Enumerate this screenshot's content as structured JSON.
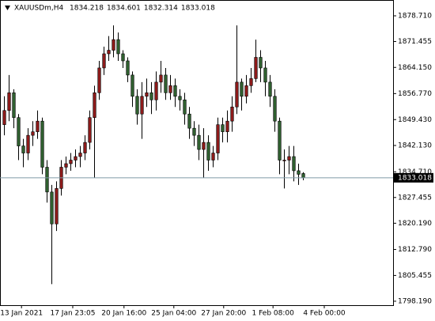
{
  "chart_data": {
    "type": "candlestick",
    "symbol": "XAUUSDm,H4",
    "up_color": "#8b1a1a",
    "down_color": "#2f5f2f",
    "wick_color": "#000000",
    "price_line_color": "#7f9aa8",
    "x": [
      0,
      1,
      2,
      3,
      4,
      5,
      6,
      7,
      8,
      9,
      10,
      11,
      12,
      13,
      14,
      15,
      16,
      17,
      18,
      19,
      20,
      21,
      22,
      23,
      24,
      25,
      26,
      27,
      28,
      29,
      30,
      31,
      32,
      33,
      34,
      35,
      36,
      37,
      38,
      39,
      40,
      41,
      42,
      43,
      44,
      45,
      46,
      47,
      48,
      49,
      50,
      51,
      52,
      53,
      54,
      55,
      56,
      57,
      58,
      59,
      60,
      61,
      62,
      63
    ],
    "open": [
      1848,
      1852,
      1857,
      1850,
      1842,
      1840,
      1845,
      1846,
      1849,
      1836,
      1829,
      1820,
      1830,
      1836,
      1837,
      1838,
      1839,
      1840,
      1843,
      1850,
      1857,
      1864,
      1868,
      1869,
      1872,
      1868,
      1866,
      1862,
      1856,
      1851,
      1856,
      1857,
      1855,
      1860,
      1862,
      1857,
      1859,
      1856,
      1855,
      1851,
      1847,
      1845,
      1841,
      1843,
      1838,
      1840,
      1848,
      1846,
      1849,
      1853,
      1860,
      1856,
      1859,
      1861,
      1867,
      1864,
      1860,
      1856,
      1849,
      1838,
      1838,
      1839,
      1835,
      1834.218
    ],
    "high": [
      1856,
      1862,
      1858,
      1851,
      1844,
      1847,
      1849,
      1852,
      1850,
      1838,
      1831,
      1832,
      1838,
      1839,
      1840,
      1841,
      1842,
      1845,
      1852,
      1859,
      1866,
      1870,
      1873,
      1876,
      1874,
      1869,
      1867,
      1863,
      1858,
      1860,
      1861,
      1860,
      1863,
      1866,
      1864,
      1862,
      1861,
      1858,
      1857,
      1853,
      1849,
      1848,
      1847,
      1845,
      1842,
      1850,
      1850,
      1852,
      1856,
      1876,
      1861,
      1862,
      1864,
      1872,
      1869,
      1866,
      1862,
      1858,
      1850,
      1841,
      1842,
      1842,
      1837,
      1834.601
    ],
    "low": [
      1845,
      1849,
      1847,
      1838,
      1836,
      1838,
      1842,
      1844,
      1834,
      1826,
      1803,
      1818,
      1828,
      1834,
      1835,
      1836,
      1836,
      1838,
      1841,
      1833,
      1855,
      1862,
      1866,
      1867,
      1866,
      1864,
      1860,
      1853,
      1848,
      1844,
      1853,
      1851,
      1852,
      1857,
      1855,
      1855,
      1853,
      1852,
      1848,
      1844,
      1842,
      1838,
      1833,
      1835,
      1836,
      1838,
      1843,
      1843,
      1846,
      1851,
      1852,
      1854,
      1857,
      1860,
      1860,
      1856,
      1853,
      1846,
      1834,
      1830,
      1834,
      1832,
      1831,
      1832.314
    ],
    "close": [
      1852,
      1857,
      1850,
      1842,
      1840,
      1845,
      1846,
      1849,
      1836,
      1829,
      1820,
      1830,
      1836,
      1837,
      1838,
      1839,
      1840,
      1843,
      1850,
      1857,
      1864,
      1868,
      1869,
      1872,
      1868,
      1866,
      1862,
      1856,
      1851,
      1856,
      1857,
      1855,
      1860,
      1862,
      1857,
      1859,
      1856,
      1855,
      1851,
      1847,
      1845,
      1841,
      1843,
      1838,
      1840,
      1848,
      1846,
      1849,
      1853,
      1860,
      1856,
      1859,
      1861,
      1867,
      1864,
      1860,
      1856,
      1849,
      1838,
      1838,
      1839,
      1835,
      1834,
      1833.018
    ],
    "xlim": [
      -0.83,
      82
    ],
    "xticks": [
      {
        "value": 3.7,
        "label": "13 Jan 2021"
      },
      {
        "value": 14.5,
        "label": "17 Jan 23:05"
      },
      {
        "value": 25.3,
        "label": "20 Jan 16:00"
      },
      {
        "value": 35.8,
        "label": "25 Jan 04:00"
      },
      {
        "value": 46.3,
        "label": "27 Jan 20:00"
      },
      {
        "value": 56.7,
        "label": "1 Feb 08:00"
      },
      {
        "value": 67.5,
        "label": "4 Feb 00:00"
      }
    ],
    "ylim": [
      1797.07,
      1883.17
    ],
    "yticks": [
      {
        "value": 1878.71,
        "label": "1878.710"
      },
      {
        "value": 1871.455,
        "label": "1871.455"
      },
      {
        "value": 1864.15,
        "label": "1864.150"
      },
      {
        "value": 1856.77,
        "label": "1856.770"
      },
      {
        "value": 1849.43,
        "label": "1849.430"
      },
      {
        "value": 1842.13,
        "label": "1842.130"
      },
      {
        "value": 1834.71,
        "label": "1834.710"
      },
      {
        "value": 1827.455,
        "label": "1827.455"
      },
      {
        "value": 1820.19,
        "label": "1820.190"
      },
      {
        "value": 1812.79,
        "label": "1812.790"
      },
      {
        "value": 1805.455,
        "label": "1805.455"
      },
      {
        "value": 1798.19,
        "label": "1798.190"
      }
    ]
  }
}
